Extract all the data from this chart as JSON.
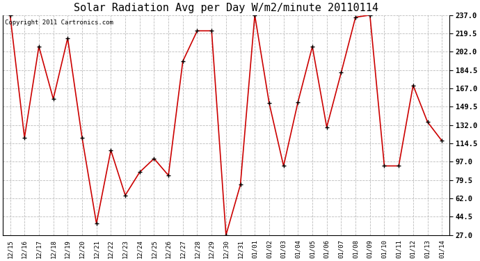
{
  "title": "Solar Radiation Avg per Day W/m2/minute 20110114",
  "copyright": "Copyright 2011 Cartronics.com",
  "labels": [
    "12/15",
    "12/16",
    "12/17",
    "12/18",
    "12/19",
    "12/20",
    "12/21",
    "12/22",
    "12/23",
    "12/24",
    "12/25",
    "12/26",
    "12/27",
    "12/28",
    "12/29",
    "12/30",
    "12/31",
    "01/01",
    "01/02",
    "01/03",
    "01/04",
    "01/05",
    "01/06",
    "01/07",
    "01/08",
    "01/09",
    "01/10",
    "01/11",
    "01/12",
    "01/13",
    "01/14"
  ],
  "values": [
    237.0,
    120.0,
    207.0,
    157.0,
    215.0,
    120.0,
    38.0,
    108.0,
    65.0,
    87.0,
    100.0,
    84.0,
    193.0,
    222.0,
    222.0,
    27.0,
    75.0,
    237.0,
    153.0,
    93.0,
    154.0,
    207.0,
    130.0,
    182.0,
    235.0,
    237.0,
    93.0,
    93.0,
    170.0,
    135.0,
    117.0
  ],
  "line_color": "#cc0000",
  "bg_color": "#ffffff",
  "grid_color": "#bbbbbb",
  "ylim": [
    27.0,
    237.0
  ],
  "yticks": [
    27.0,
    44.5,
    62.0,
    79.5,
    97.0,
    114.5,
    132.0,
    149.5,
    167.0,
    184.5,
    202.0,
    219.5,
    237.0
  ],
  "title_fontsize": 11,
  "copyright_fontsize": 6.5
}
